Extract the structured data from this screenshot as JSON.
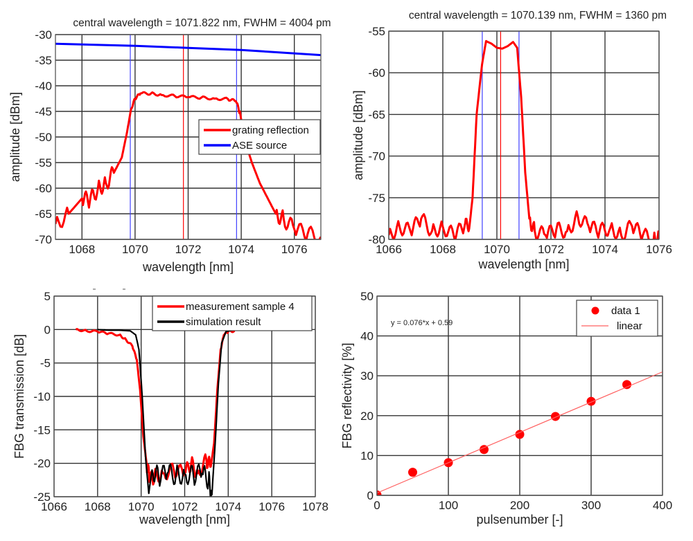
{
  "chart_data": [
    {
      "id": "reflection-broad",
      "type": "line",
      "title": "central wavelength = 1071.822 nm, FWHM = 4004 pm",
      "xlabel": "wavelength [nm]",
      "ylabel": "amplitude [dBm]",
      "xlim": [
        1067,
        1077
      ],
      "ylim": [
        -70,
        -30
      ],
      "xticks": [
        1068,
        1070,
        1072,
        1074,
        1076
      ],
      "yticks": [
        -30,
        -35,
        -40,
        -45,
        -50,
        -55,
        -60,
        -65,
        -70
      ],
      "grid": true,
      "legend": {
        "placement": "center-right",
        "entries": [
          "grating reflection",
          "ASE source"
        ]
      },
      "series": [
        {
          "name": "grating reflection",
          "color": "#ff0000",
          "x": [
            1067.0,
            1067.5,
            1068.0,
            1068.3,
            1068.6,
            1068.9,
            1069.2,
            1069.5,
            1069.7,
            1069.85,
            1070.0,
            1070.2,
            1070.6,
            1071.0,
            1071.5,
            1072.0,
            1072.5,
            1073.0,
            1073.5,
            1073.8,
            1073.95,
            1074.1,
            1074.4,
            1074.7,
            1075.0,
            1075.3,
            1075.6,
            1076.0,
            1076.5,
            1077.0
          ],
          "y": [
            -67,
            -65,
            -62,
            -62.5,
            -60,
            -59,
            -57,
            -54,
            -49,
            -44.5,
            -42.5,
            -41.5,
            -41.5,
            -41.8,
            -42,
            -42.2,
            -42.3,
            -42.5,
            -42.6,
            -43,
            -45,
            -50,
            -55,
            -59,
            -62,
            -65,
            -66,
            -68,
            -69,
            -69.5
          ]
        },
        {
          "name": "ASE source",
          "color": "#0000ff",
          "x": [
            1067,
            1070,
            1072,
            1074,
            1077
          ],
          "y": [
            -31.8,
            -32.2,
            -32.6,
            -33.0,
            -34.0
          ]
        }
      ],
      "markers": [
        {
          "type": "vline",
          "x": 1069.82,
          "color": "#4040ff",
          "label": "FWHM left"
        },
        {
          "type": "vline",
          "x": 1071.822,
          "color": "#ff0000",
          "label": "central wavelength"
        },
        {
          "type": "vline",
          "x": 1073.824,
          "color": "#4040ff",
          "label": "FWHM right"
        }
      ]
    },
    {
      "id": "reflection-narrow",
      "type": "line",
      "title": "central wavelength = 1070.139 nm, FWHM = 1360 pm",
      "xlabel": "wavelength [nm]",
      "ylabel": "amplitude [dBm]",
      "xlim": [
        1066,
        1076
      ],
      "ylim": [
        -80,
        -55
      ],
      "xticks": [
        1066,
        1068,
        1070,
        1072,
        1074,
        1076
      ],
      "yticks": [
        -55,
        -60,
        -65,
        -70,
        -75,
        -80
      ],
      "grid": true,
      "series": [
        {
          "name": "reflection",
          "color": "#ff0000",
          "x": [
            1066.0,
            1066.4,
            1066.8,
            1067.2,
            1067.6,
            1068.0,
            1068.4,
            1068.8,
            1069.0,
            1069.1,
            1069.25,
            1069.45,
            1069.6,
            1069.8,
            1070.0,
            1070.2,
            1070.4,
            1070.6,
            1070.75,
            1070.9,
            1071.05,
            1071.2,
            1071.4,
            1071.8,
            1072.2,
            1072.6,
            1073.0,
            1073.4,
            1073.8,
            1074.2,
            1074.6,
            1075.0,
            1075.4,
            1075.8,
            1076.0
          ],
          "y": [
            -79.5,
            -78.5,
            -79,
            -77.5,
            -79,
            -78.5,
            -79.5,
            -78.5,
            -78,
            -75,
            -65,
            -59,
            -56.2,
            -56.5,
            -57,
            -57.1,
            -56.8,
            -56.3,
            -57,
            -63,
            -72,
            -77.5,
            -79,
            -79.5,
            -78.8,
            -79,
            -77.3,
            -78.5,
            -79,
            -78.6,
            -79.5,
            -78.4,
            -79.5,
            -80,
            -79.7
          ]
        }
      ],
      "markers": [
        {
          "type": "vline",
          "x": 1069.459,
          "color": "#4040ff",
          "label": "FWHM left"
        },
        {
          "type": "vline",
          "x": 1070.139,
          "color": "#ff0000",
          "label": "central wavelength"
        },
        {
          "type": "vline",
          "x": 1070.819,
          "color": "#4040ff",
          "label": "FWHM right"
        }
      ]
    },
    {
      "id": "transmission",
      "type": "line",
      "title": "",
      "xlabel": "wavelength [nm]",
      "ylabel": "FBG transmission [dB]",
      "xlim": [
        1066,
        1078
      ],
      "ylim": [
        -25,
        5
      ],
      "xticks": [
        1066,
        1068,
        1070,
        1072,
        1074,
        1076,
        1078
      ],
      "yticks": [
        5,
        0,
        -5,
        -10,
        -15,
        -20,
        -25
      ],
      "grid": true,
      "legend": {
        "placement": "top-right",
        "entries": [
          "measurement sample 4",
          "simulation result"
        ]
      },
      "series": [
        {
          "name": "measurement sample 4",
          "color": "#ff0000",
          "x": [
            1067.0,
            1067.5,
            1068.0,
            1068.5,
            1069.0,
            1069.3,
            1069.6,
            1069.8,
            1069.95,
            1070.1,
            1070.25,
            1070.4,
            1070.6,
            1071.0,
            1071.5,
            1072.0,
            1072.3,
            1072.6,
            1073.0,
            1073.2,
            1073.35,
            1073.5,
            1073.65,
            1073.8,
            1074.0,
            1074.3
          ],
          "y": [
            0,
            -0.2,
            -0.3,
            -0.6,
            -0.8,
            -1.5,
            -2.5,
            -4.5,
            -9,
            -16,
            -20,
            -22.5,
            -22,
            -21.5,
            -21,
            -21.5,
            -20,
            -21.5,
            -19.5,
            -20.5,
            -17,
            -9,
            -3,
            -0.8,
            -0.3,
            -0.2
          ]
        },
        {
          "name": "simulation result",
          "color": "#000000",
          "x": [
            1068.0,
            1068.5,
            1069.0,
            1069.5,
            1069.75,
            1069.9,
            1070.05,
            1070.2,
            1070.35,
            1070.5,
            1070.8,
            1071.2,
            1071.6,
            1072.0,
            1072.4,
            1072.8,
            1073.1,
            1073.25,
            1073.4,
            1073.55,
            1073.7,
            1073.9,
            1074.2
          ],
          "y": [
            0,
            -0.1,
            -0.1,
            -0.2,
            -0.8,
            -3,
            -10,
            -19,
            -24.5,
            -21,
            -22,
            -21.5,
            -21.8,
            -21.6,
            -21.8,
            -21.5,
            -22.5,
            -24.7,
            -17,
            -8,
            -2,
            -0.3,
            -0.1
          ]
        }
      ]
    },
    {
      "id": "reflectivity-vs-pulses",
      "type": "scatter",
      "title": "",
      "xlabel": "pulsenumber [-]",
      "ylabel": "FBG reflectivity [%]",
      "xlim": [
        0,
        400
      ],
      "ylim": [
        0,
        50
      ],
      "xticks": [
        0,
        100,
        200,
        300,
        400
      ],
      "yticks": [
        0,
        10,
        20,
        30,
        40,
        50
      ],
      "grid": true,
      "legend": {
        "placement": "top-right",
        "entries": [
          "data 1",
          "linear"
        ]
      },
      "annotation": "y = 0.076*x + 0.59",
      "series": [
        {
          "name": "data 1",
          "color": "#ff0000",
          "marker": "circle",
          "x": [
            0,
            50,
            100,
            150,
            200,
            250,
            300,
            350
          ],
          "y": [
            0.1,
            5.8,
            8.2,
            11.5,
            15.3,
            19.8,
            23.6,
            27.8
          ]
        },
        {
          "name": "linear",
          "color": "#ff6060",
          "fit": {
            "slope": 0.076,
            "intercept": 0.59
          },
          "x": [
            0,
            400
          ],
          "y": [
            0.59,
            30.99
          ]
        }
      ]
    }
  ]
}
